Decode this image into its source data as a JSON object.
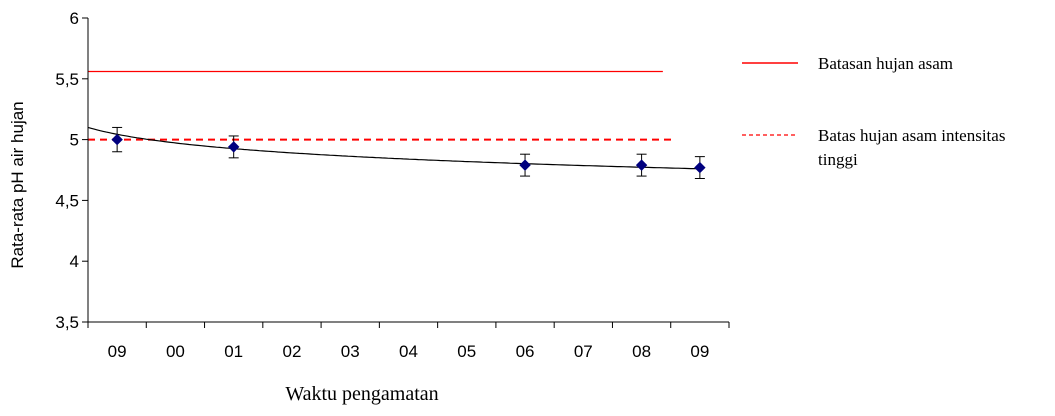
{
  "chart_data": {
    "type": "scatter",
    "title": "",
    "xlabel": "Waktu pengamatan",
    "ylabel": "Rata-rata pH air hujan",
    "ylim": [
      3.5,
      6
    ],
    "y_ticks": [
      "3,5",
      "4",
      "4,5",
      "5",
      "5,5",
      "6"
    ],
    "categories": [
      "09",
      "00",
      "01",
      "02",
      "03",
      "04",
      "05",
      "06",
      "07",
      "08",
      "09"
    ],
    "series": [
      {
        "values": [
          5.0,
          null,
          4.94,
          null,
          null,
          null,
          null,
          4.79,
          null,
          4.79,
          4.77
        ],
        "error": [
          0.1,
          null,
          0.09,
          null,
          null,
          null,
          null,
          0.09,
          null,
          0.09,
          0.09
        ],
        "color": "#00007f",
        "marker": "diamond"
      }
    ],
    "trendline": {
      "type": "logarithmic",
      "x_start": -0.5,
      "x_end": 10,
      "y_start": 5.1,
      "y_end": 4.76,
      "color": "#000000"
    },
    "reference_lines": [
      {
        "name": "Batasan hujan asam",
        "y": 5.56,
        "style": "solid",
        "color": "#ff0000"
      },
      {
        "name": "Batas hujan asam intensitas tinggi",
        "y": 5.0,
        "style": "dashed",
        "color": "#ff0000"
      }
    ],
    "legend": {
      "position": "right",
      "entries": [
        {
          "lines": [
            "Batasan hujan asam"
          ],
          "style": "solid",
          "color": "#ff0000"
        },
        {
          "lines": [
            "Batas hujan asam intensitas",
            "tinggi"
          ],
          "style": "dashed",
          "color": "#ff0000"
        }
      ]
    },
    "grid": false
  }
}
